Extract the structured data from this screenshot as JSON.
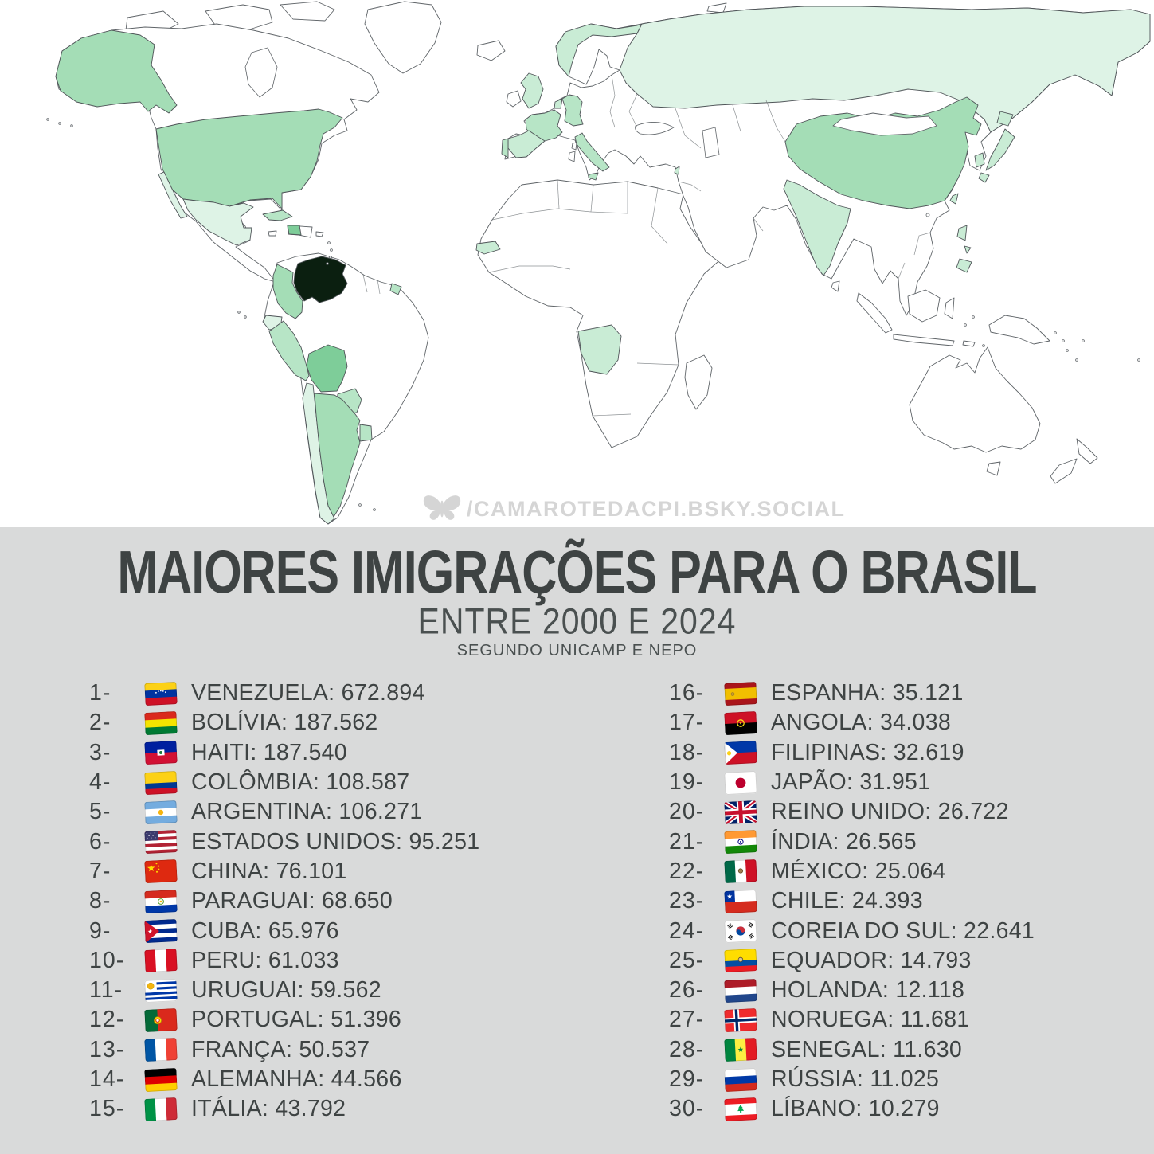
{
  "header": {
    "title": "MAIORES IMIGRAÇÕES PARA O BRASIL",
    "subtitle": "ENTRE 2000 E 2024",
    "source": "SEGUNDO UNICAMP E NEPO"
  },
  "watermark": {
    "icon": "bluesky-butterfly-icon",
    "handle": "/CAMAROTEDACPI.BSKY.SOCIAL"
  },
  "colors": {
    "panel_bg": "#d9dada",
    "text": "#3e4343",
    "map_border": "#5f6468",
    "watermark": "#d5d5d5"
  },
  "map": {
    "type": "choropleth-world",
    "palette": {
      "none": "#ffffff",
      "level1": "#def3e6",
      "level2": "#c9ecd5",
      "level3": "#b7e5c6",
      "level4": "#a4ddb6",
      "level5": "#7ecd99",
      "top": "#0b1f10"
    },
    "shades": {
      "venezuela": "top",
      "bolivia": "level5",
      "haiti": "level5",
      "colombia": "level4",
      "argentina": "level4",
      "usa": "level4",
      "china": "level4",
      "paraguay": "level3",
      "cuba": "level3",
      "peru": "level3",
      "uruguay": "level3",
      "portugal": "level3",
      "france": "level3",
      "germany": "level3",
      "italy": "level3",
      "french-guiana": "level3",
      "spain": "level2",
      "angola": "level2",
      "philippines": "level2",
      "japan": "level2",
      "uk": "level2",
      "india": "level2",
      "south-korea": "level2",
      "netherlands": "level2",
      "norway": "level2",
      "senegal": "level2",
      "taiwan": "level2",
      "lebanon": "level2",
      "mexico": "level1",
      "chile": "level1",
      "ecuador": "level1",
      "russia": "level1"
    }
  },
  "ranking": [
    {
      "rank": 1,
      "country": "VENEZUELA",
      "value": "672.894",
      "flag": "flag-venezuela"
    },
    {
      "rank": 2,
      "country": "BOLÍVIA",
      "value": "187.562",
      "flag": "flag-bolivia"
    },
    {
      "rank": 3,
      "country": "HAITI",
      "value": "187.540",
      "flag": "flag-haiti"
    },
    {
      "rank": 4,
      "country": "COLÔMBIA",
      "value": "108.587",
      "flag": "flag-colombia"
    },
    {
      "rank": 5,
      "country": "ARGENTINA",
      "value": "106.271",
      "flag": "flag-argentina"
    },
    {
      "rank": 6,
      "country": "ESTADOS UNIDOS",
      "value": "95.251",
      "flag": "flag-estados-unidos"
    },
    {
      "rank": 7,
      "country": "CHINA",
      "value": "76.101",
      "flag": "flag-china"
    },
    {
      "rank": 8,
      "country": "PARAGUAI",
      "value": "68.650",
      "flag": "flag-paraguai"
    },
    {
      "rank": 9,
      "country": "CUBA",
      "value": "65.976",
      "flag": "flag-cuba"
    },
    {
      "rank": 10,
      "country": "PERU",
      "value": "61.033",
      "flag": "flag-peru"
    },
    {
      "rank": 11,
      "country": "URUGUAI",
      "value": "59.562",
      "flag": "flag-uruguai"
    },
    {
      "rank": 12,
      "country": "PORTUGAL",
      "value": "51.396",
      "flag": "flag-portugal"
    },
    {
      "rank": 13,
      "country": "FRANÇA",
      "value": "50.537",
      "flag": "flag-franca"
    },
    {
      "rank": 14,
      "country": "ALEMANHA",
      "value": "44.566",
      "flag": "flag-alemanha"
    },
    {
      "rank": 15,
      "country": "ITÁLIA",
      "value": "43.792",
      "flag": "flag-italia"
    },
    {
      "rank": 16,
      "country": "ESPANHA",
      "value": "35.121",
      "flag": "flag-espanha"
    },
    {
      "rank": 17,
      "country": "ANGOLA",
      "value": "34.038",
      "flag": "flag-angola"
    },
    {
      "rank": 18,
      "country": "FILIPINAS",
      "value": "32.619",
      "flag": "flag-filipinas"
    },
    {
      "rank": 19,
      "country": "JAPÃO",
      "value": "31.951",
      "flag": "flag-japao"
    },
    {
      "rank": 20,
      "country": "REINO UNIDO",
      "value": "26.722",
      "flag": "flag-reino-unido"
    },
    {
      "rank": 21,
      "country": "ÍNDIA",
      "value": "26.565",
      "flag": "flag-india"
    },
    {
      "rank": 22,
      "country": "MÉXICO",
      "value": "25.064",
      "flag": "flag-mexico"
    },
    {
      "rank": 23,
      "country": "CHILE",
      "value": "24.393",
      "flag": "flag-chile"
    },
    {
      "rank": 24,
      "country": "COREIA DO SUL",
      "value": "22.641",
      "flag": "flag-coreia-do-sul"
    },
    {
      "rank": 25,
      "country": "EQUADOR",
      "value": "14.793",
      "flag": "flag-equador"
    },
    {
      "rank": 26,
      "country": "HOLANDA",
      "value": "12.118",
      "flag": "flag-holanda"
    },
    {
      "rank": 27,
      "country": "NORUEGA",
      "value": "11.681",
      "flag": "flag-noruega"
    },
    {
      "rank": 28,
      "country": "SENEGAL",
      "value": "11.630",
      "flag": "flag-senegal"
    },
    {
      "rank": 29,
      "country": "RÚSSIA",
      "value": "11.025",
      "flag": "flag-russia"
    },
    {
      "rank": 30,
      "country": "LÍBANO",
      "value": "10.279",
      "flag": "flag-libano"
    }
  ]
}
